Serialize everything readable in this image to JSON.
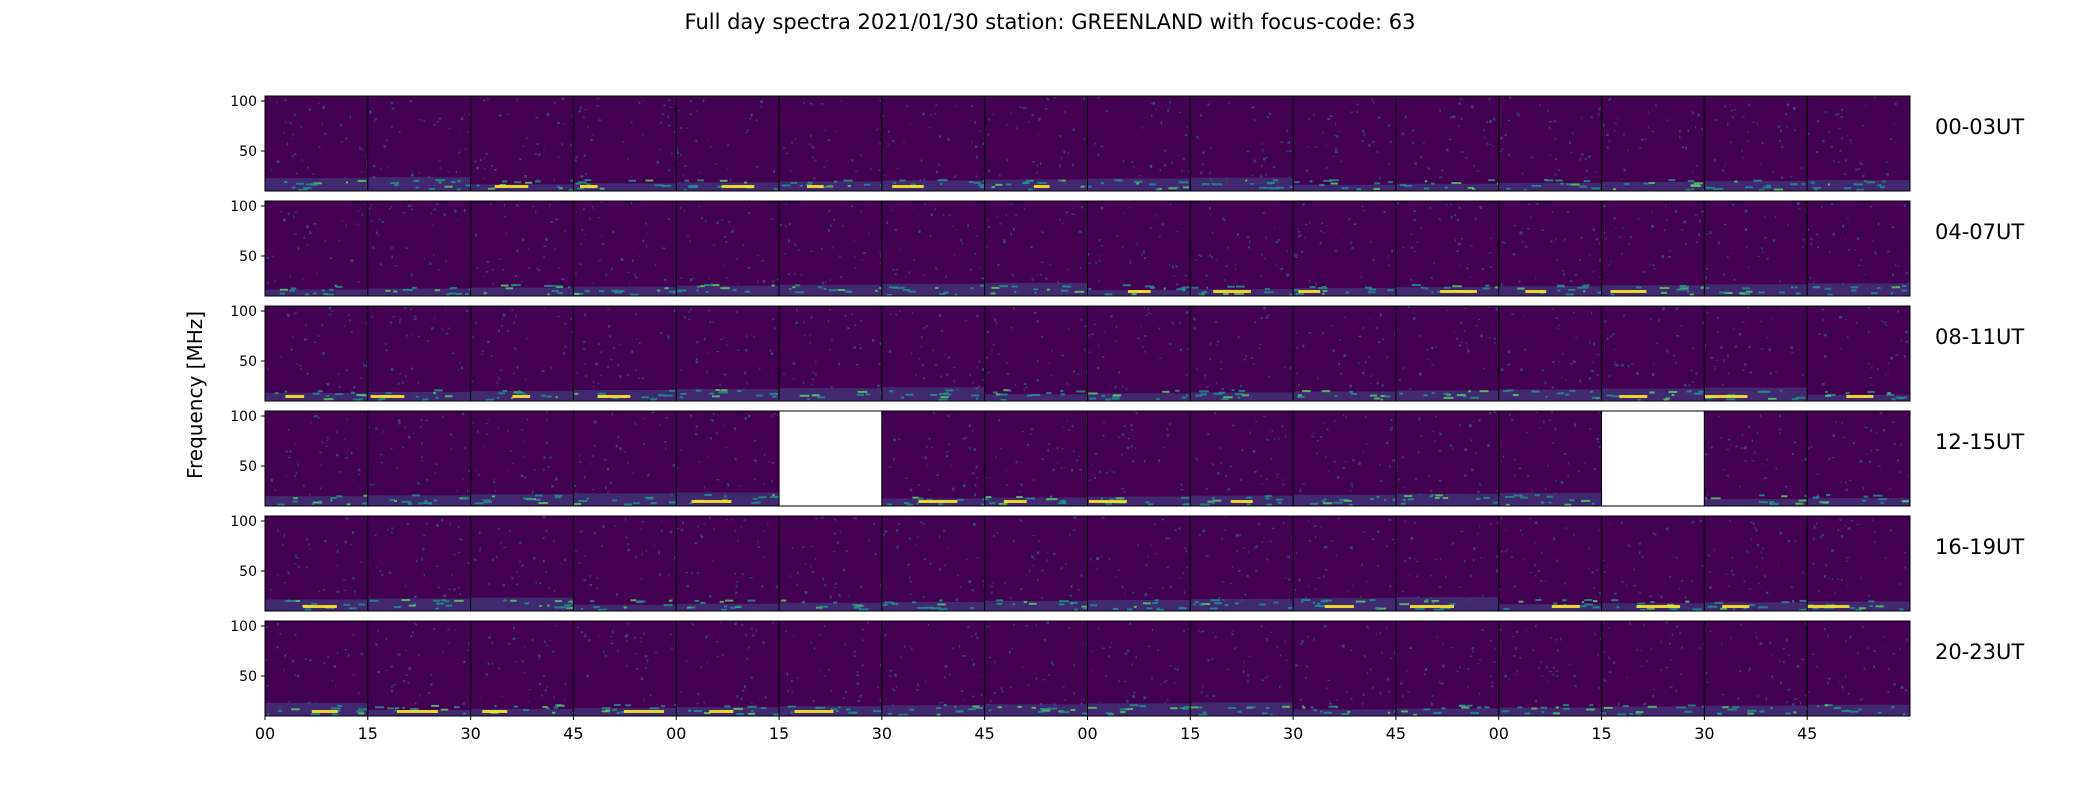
{
  "chart_data": {
    "type": "heatmap",
    "title": "Full day spectra 2021/01/30 station: GREENLAND with focus-code: 63",
    "ylabel": "Frequency [MHz]",
    "y_ticks": [
      100,
      50
    ],
    "ylim": [
      10,
      105
    ],
    "x_tick_labels": [
      "00",
      "15",
      "30",
      "45",
      "00",
      "15",
      "30",
      "45",
      "00",
      "15",
      "30",
      "45",
      "00",
      "15",
      "30",
      "45"
    ],
    "rows": [
      {
        "label": "00-03UT",
        "missing_panels": []
      },
      {
        "label": "04-07UT",
        "missing_panels": []
      },
      {
        "label": "08-11UT",
        "missing_panels": []
      },
      {
        "label": "12-15UT",
        "missing_panels": [
          5,
          13
        ]
      },
      {
        "label": "16-19UT",
        "missing_panels": []
      },
      {
        "label": "20-23UT",
        "missing_panels": []
      }
    ],
    "panels_per_row": 16,
    "colormap": "viridis",
    "colors": {
      "background": "#440154",
      "low_band": "#3b528b",
      "mid_band": "#21918c",
      "high_band": "#5ec962",
      "peak": "#fde725"
    }
  }
}
